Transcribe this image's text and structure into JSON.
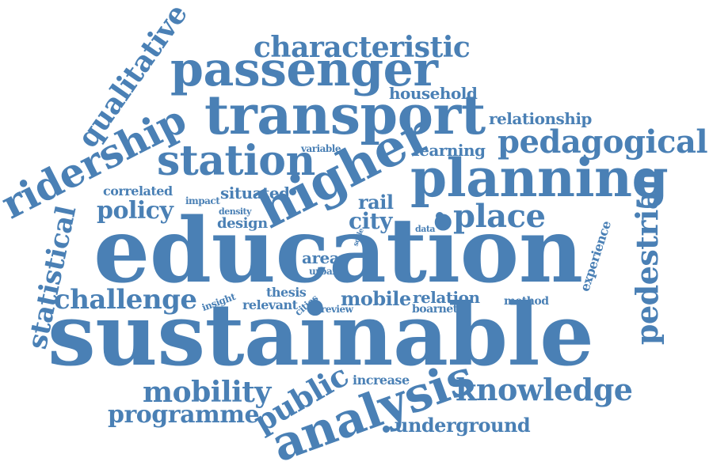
{
  "color": "#4a80b5",
  "words": [
    {
      "id": "education",
      "text": "education"
    },
    {
      "id": "sustainable",
      "text": "sustainable"
    },
    {
      "id": "transport",
      "text": "transport"
    },
    {
      "id": "passenger",
      "text": "passenger"
    },
    {
      "id": "planning",
      "text": "planning"
    },
    {
      "id": "higher",
      "text": "higher"
    },
    {
      "id": "station",
      "text": "station"
    },
    {
      "id": "ridership",
      "text": "ridership"
    },
    {
      "id": "analysis",
      "text": "analysis"
    },
    {
      "id": "pedagogical",
      "text": "pedagogical"
    },
    {
      "id": "characteristic",
      "text": "characteristic"
    },
    {
      "id": "qualitative",
      "text": "qualitative"
    },
    {
      "id": "statistical",
      "text": "statistical"
    },
    {
      "id": "pedestrian",
      "text": "pedestrian"
    },
    {
      "id": "knowledge",
      "text": "knowledge"
    },
    {
      "id": "mobility",
      "text": "mobility"
    },
    {
      "id": "programme",
      "text": "programme"
    },
    {
      "id": "public",
      "text": "public"
    },
    {
      "id": "challenge",
      "text": "challenge"
    },
    {
      "id": "place",
      "text": "place"
    },
    {
      "id": "policy",
      "text": "policy"
    },
    {
      "id": "underground",
      "text": "underground"
    },
    {
      "id": "relationship",
      "text": "relationship"
    },
    {
      "id": "household",
      "text": "household"
    },
    {
      "id": "learning",
      "text": "learning"
    },
    {
      "id": "city",
      "text": "city"
    },
    {
      "id": "rail",
      "text": "rail"
    },
    {
      "id": "mobile",
      "text": "mobile"
    },
    {
      "id": "relation",
      "text": "relation"
    },
    {
      "id": "situated",
      "text": "situated"
    },
    {
      "id": "correlated",
      "text": "correlated"
    },
    {
      "id": "design",
      "text": "design"
    },
    {
      "id": "area",
      "text": "area"
    },
    {
      "id": "thesis",
      "text": "thesis"
    },
    {
      "id": "relevant",
      "text": "relevant"
    },
    {
      "id": "increase",
      "text": "increase"
    },
    {
      "id": "method",
      "text": "method"
    },
    {
      "id": "boarnet",
      "text": "boarnet"
    },
    {
      "id": "experience",
      "text": "experience"
    },
    {
      "id": "variable",
      "text": "variable"
    },
    {
      "id": "impact",
      "text": "impact"
    },
    {
      "id": "density",
      "text": "density"
    },
    {
      "id": "urban",
      "text": "urban"
    },
    {
      "id": "insight",
      "text": "insight"
    },
    {
      "id": "cities",
      "text": "cities"
    },
    {
      "id": "review",
      "text": "review"
    },
    {
      "id": "data",
      "text": "data"
    },
    {
      "id": "scale",
      "text": "scale"
    }
  ]
}
